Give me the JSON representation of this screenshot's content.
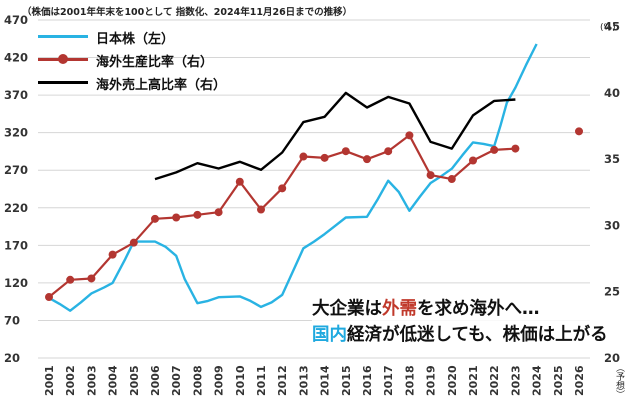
{
  "header": {
    "note": "（株価は2001年年末を100として 指数化、2024年11月26日までの推移）",
    "right_unit": "(%)",
    "forecast_label": "（予想）"
  },
  "legend": [
    {
      "label": "日本株（左）",
      "color": "#29b3e3",
      "marker": "none"
    },
    {
      "label": "海外生産比率（右）",
      "color": "#b33631",
      "marker": "dot"
    },
    {
      "label": "海外売上高比率（右）",
      "color": "#000000",
      "marker": "none"
    }
  ],
  "headline": {
    "line1_a": "大企業は",
    "line1_b": "外需",
    "line1_c": "を求め海外へ…",
    "line2_a": "国内",
    "line2_b": "経済が低迷しても、株価は上がる",
    "accent_red": "#c0392b",
    "accent_blue": "#1fa9df"
  },
  "chart_data": {
    "type": "line",
    "categories": [
      "2001",
      "2002",
      "2003",
      "2004",
      "2005",
      "2006",
      "2007",
      "2008",
      "2009",
      "2010",
      "2011",
      "2012",
      "2013",
      "2014",
      "2015",
      "2016",
      "2017",
      "2018",
      "2019",
      "2020",
      "2021",
      "2022",
      "2023",
      "2024",
      "2025",
      "2026"
    ],
    "left_axis": {
      "ticks": [
        20,
        70,
        120,
        170,
        220,
        270,
        320,
        370,
        420,
        470
      ],
      "range": [
        20,
        470
      ]
    },
    "right_axis": {
      "ticks": [
        20,
        25,
        30,
        35,
        40,
        45
      ],
      "range": [
        20,
        45.5
      ]
    },
    "series": [
      {
        "name": "日本株（左）",
        "axis": "left",
        "color": "#29b3e3",
        "points": [
          [
            2001,
            100
          ],
          [
            2001.5,
            92
          ],
          [
            2002,
            83
          ],
          [
            2002.5,
            94
          ],
          [
            2003,
            106
          ],
          [
            2003.6,
            114
          ],
          [
            2004,
            120
          ],
          [
            2004.6,
            152
          ],
          [
            2005,
            175
          ],
          [
            2005.5,
            175
          ],
          [
            2006,
            175
          ],
          [
            2006.5,
            168
          ],
          [
            2007,
            156
          ],
          [
            2007.4,
            125
          ],
          [
            2008,
            93
          ],
          [
            2008.5,
            96
          ],
          [
            2009,
            101
          ],
          [
            2010,
            102
          ],
          [
            2010.5,
            96
          ],
          [
            2011,
            88
          ],
          [
            2011.5,
            94
          ],
          [
            2012,
            104
          ],
          [
            2012.5,
            135
          ],
          [
            2013,
            166
          ],
          [
            2013.5,
            175
          ],
          [
            2014,
            185
          ],
          [
            2014.5,
            196
          ],
          [
            2015,
            207
          ],
          [
            2016,
            208
          ],
          [
            2016.5,
            231
          ],
          [
            2017,
            256
          ],
          [
            2017.5,
            241
          ],
          [
            2018,
            216
          ],
          [
            2018.5,
            235
          ],
          [
            2019,
            253
          ],
          [
            2019.5,
            262
          ],
          [
            2020,
            272
          ],
          [
            2020.5,
            290
          ],
          [
            2021,
            307
          ],
          [
            2021.5,
            305
          ],
          [
            2022,
            302
          ],
          [
            2022.3,
            330
          ],
          [
            2022.6,
            360
          ],
          [
            2023,
            380
          ],
          [
            2023.5,
            410
          ],
          [
            2024,
            438
          ]
        ]
      },
      {
        "name": "海外生産比率（右）",
        "axis": "right",
        "color": "#b33631",
        "marker": "dot",
        "points": [
          [
            2001,
            24.6
          ],
          [
            2002,
            25.9
          ],
          [
            2003,
            26.0
          ],
          [
            2004,
            27.8
          ],
          [
            2005,
            28.7
          ],
          [
            2006,
            30.5
          ],
          [
            2007,
            30.6
          ],
          [
            2008,
            30.8
          ],
          [
            2009,
            31.0
          ],
          [
            2010,
            33.3
          ],
          [
            2011,
            31.2
          ],
          [
            2012,
            32.8
          ],
          [
            2013,
            35.2
          ],
          [
            2014,
            35.1
          ],
          [
            2015,
            35.6
          ],
          [
            2016,
            35.0
          ],
          [
            2017,
            35.6
          ],
          [
            2018,
            36.8
          ],
          [
            2019,
            33.8
          ],
          [
            2020,
            33.5
          ],
          [
            2021,
            34.9
          ],
          [
            2022,
            35.7
          ],
          [
            2023,
            35.8
          ]
        ],
        "forecast": [
          [
            2026,
            37.1
          ]
        ]
      },
      {
        "name": "海外売上高比率（右）",
        "axis": "right",
        "color": "#000000",
        "points": [
          [
            2006,
            33.5
          ],
          [
            2007,
            34.0
          ],
          [
            2008,
            34.7
          ],
          [
            2009,
            34.3
          ],
          [
            2010,
            34.8
          ],
          [
            2011,
            34.2
          ],
          [
            2012,
            35.5
          ],
          [
            2013,
            37.8
          ],
          [
            2014,
            38.2
          ],
          [
            2015,
            40.0
          ],
          [
            2016,
            38.9
          ],
          [
            2017,
            39.7
          ],
          [
            2018,
            39.2
          ],
          [
            2019,
            36.3
          ],
          [
            2020,
            35.8
          ],
          [
            2021,
            38.3
          ],
          [
            2022,
            39.4
          ],
          [
            2023,
            39.5
          ]
        ]
      }
    ]
  }
}
